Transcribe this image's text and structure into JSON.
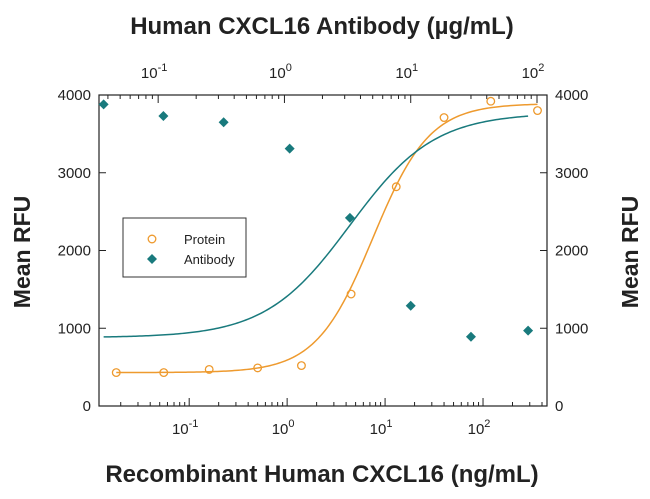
{
  "chart_data": {
    "type": "scatter",
    "title_top": "Human CXCL16 Antibody (µg/mL)",
    "xlabel": "Recombinant Human CXCL16 (ng/mL)",
    "ylabel_left": "Mean RFU",
    "ylabel_right": "Mean RFU",
    "x_scale": "log",
    "ylim": [
      0,
      4000
    ],
    "y_ticks": [
      0,
      1000,
      2000,
      3000,
      4000
    ],
    "y_tick_labels": [
      "0",
      "1000",
      "2000",
      "3000",
      "4000"
    ],
    "bottom_axis": {
      "xlim": [
        0.012,
        450
      ],
      "major_ticks": [
        0.1,
        1,
        10,
        100
      ],
      "tick_labels": [
        {
          "base": "10",
          "exp": "-1"
        },
        {
          "base": "10",
          "exp": "0"
        },
        {
          "base": "10",
          "exp": "1"
        },
        {
          "base": "10",
          "exp": "2"
        }
      ]
    },
    "top_axis": {
      "xlim": [
        0.034,
        120
      ],
      "major_ticks": [
        0.1,
        1,
        10,
        100
      ],
      "tick_labels": [
        {
          "base": "10",
          "exp": "-1"
        },
        {
          "base": "10",
          "exp": "0"
        },
        {
          "base": "10",
          "exp": "1"
        },
        {
          "base": "10",
          "exp": "2"
        }
      ]
    },
    "legend": {
      "placement": "middle-left",
      "entries": [
        "Protein",
        "Antibody"
      ]
    },
    "series": [
      {
        "name": "Protein",
        "axis": "bottom",
        "marker": "open-circle",
        "color": "#EE9A2E",
        "x": [
          0.018,
          0.055,
          0.16,
          0.5,
          1.4,
          4.5,
          13,
          40,
          120,
          360
        ],
        "y": [
          430,
          430,
          470,
          490,
          520,
          1440,
          2820,
          3710,
          3920,
          3800
        ],
        "fit": {
          "bottom": 430,
          "top": 3890,
          "ec50": 7.5,
          "hill": 1.5
        }
      },
      {
        "name": "Antibody",
        "axis": "top",
        "marker": "filled-diamond",
        "color": "#197A7D",
        "x": [
          0.037,
          0.11,
          0.33,
          1.1,
          3.3,
          10,
          30,
          85
        ],
        "y": [
          3880,
          3730,
          3650,
          3310,
          2420,
          1290,
          890,
          970
        ],
        "fit": {
          "bottom": 880,
          "top": 3770,
          "ec50": 3.3,
          "hill": 1.3
        }
      }
    ]
  }
}
